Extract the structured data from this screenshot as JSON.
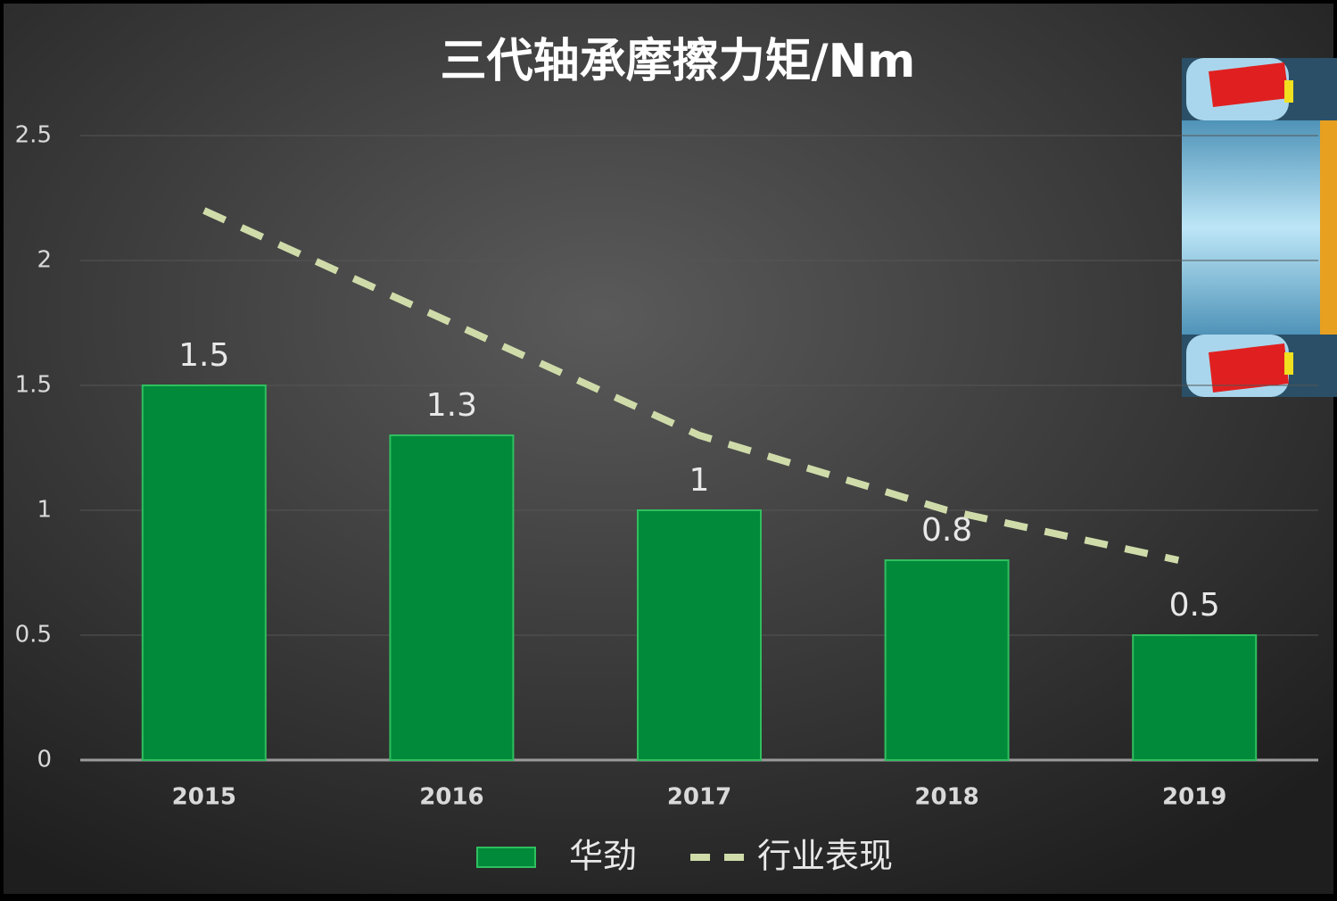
{
  "chart_data": {
    "type": "bar",
    "title": "三代轴承摩擦力矩/Nm",
    "categories": [
      "2015",
      "2016",
      "2017",
      "2018",
      "2019"
    ],
    "series": [
      {
        "name": "华劲",
        "type": "bar",
        "color": "#008a3a",
        "values": [
          1.5,
          1.3,
          1,
          0.8,
          0.5
        ]
      },
      {
        "name": "行业表现",
        "type": "line",
        "color": "#cfdcaa",
        "dashed": true,
        "values": [
          2.2,
          1.75,
          1.3,
          1.0,
          0.8
        ]
      }
    ],
    "ylim": [
      0,
      2.5
    ],
    "yticks": [
      0,
      0.5,
      1,
      1.5,
      2,
      2.5
    ],
    "grid": true,
    "legend": "bottom"
  }
}
